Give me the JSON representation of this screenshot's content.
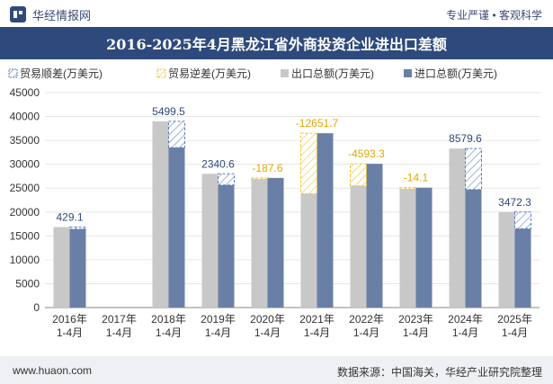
{
  "header": {
    "brand": "华经情报网",
    "tagline": "专业严谨 • 客观科学"
  },
  "footer": {
    "website": "www.huaon.com",
    "source": "数据来源：中国海关，华经产业研究院整理"
  },
  "colors": {
    "title_bg": "#2e4a7c",
    "export_bar": "#c8c8c8",
    "import_bar": "#6a7fa6",
    "surplus": "#5b7db5",
    "deficit": "#f5c518"
  },
  "chart_data": {
    "type": "bar",
    "title": "2016-2025年4月黑龙江省外商投资企业进出口差额",
    "categories": [
      "2016年\n1-4月",
      "2017年\n1-4月",
      "2018年\n1-4月",
      "2019年\n1-4月",
      "2020年\n1-4月",
      "2021年\n1-4月",
      "2022年\n1-4月",
      "2023年\n1-4月",
      "2024年\n1-4月",
      "2025年\n1-4月"
    ],
    "legend": [
      "贸易顺差(万美元)",
      "贸易逆差(万美元)",
      "出口总额(万美元)",
      "进口总额(万美元)"
    ],
    "series": [
      {
        "name": "出口总额(万美元)",
        "values": [
          16850,
          0,
          39000,
          28000,
          26950,
          23850,
          25500,
          25100,
          33300,
          20000
        ]
      },
      {
        "name": "进口总额(万美元)",
        "values": [
          16420,
          0,
          33500,
          25660,
          27140,
          36500,
          30100,
          25110,
          24720,
          16530
        ]
      }
    ],
    "balance": {
      "labels": [
        "429.1",
        "",
        "5499.5",
        "2340.6",
        "-187.6",
        "-12651.7",
        "-4593.3",
        "-14.1",
        "8579.6",
        "3472.3"
      ],
      "values": [
        429.1,
        null,
        5499.5,
        2340.6,
        -187.6,
        -12651.7,
        -4593.3,
        -14.1,
        8579.6,
        3472.3
      ]
    },
    "yticks": [
      0,
      5000,
      10000,
      15000,
      20000,
      25000,
      30000,
      35000,
      40000,
      45000
    ],
    "ylim": [
      0,
      45000
    ],
    "legend_position": "top-left",
    "grid": true
  }
}
